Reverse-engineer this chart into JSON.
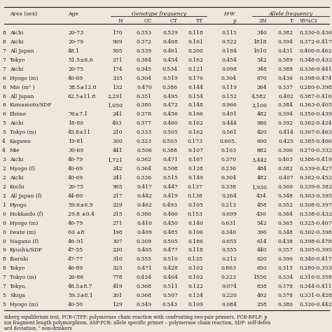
{
  "rows": [
    [
      "8",
      "Aichi",
      "20-73",
      "170",
      "0.353",
      "0.529",
      "0.118",
      "0.115",
      "340",
      "0.382",
      "0.330-0.436"
    ],
    [
      "8",
      "Aichi",
      "20-79",
      "909",
      "0.372",
      "0.468",
      "0.161",
      "0.522",
      "1818",
      "0.394",
      "0.372-0.417"
    ],
    [
      "7",
      "All Japan",
      "48.1",
      "505",
      "0.339",
      "0.461",
      "0.200",
      "0.184",
      "1010",
      "0.431",
      "0.400-0.462"
    ],
    [
      "7",
      "Tokyo",
      "51.5±8.6",
      "271",
      "0.384",
      "0.454",
      "0.162",
      "0.454",
      "542",
      "0.389",
      "0.348-0.432"
    ],
    [
      "7",
      "Aichi",
      "20-75",
      "174",
      "0.345",
      "0.534",
      "0.121",
      "0.098",
      "348",
      "0.388",
      "0.336-0.441"
    ],
    [
      "6",
      "Hyogo (m)",
      "40-69",
      "335",
      "0.304",
      "0.519",
      "0.176",
      "0.304",
      "670",
      "0.436",
      "0.398-0.474"
    ],
    [
      "6",
      "Mie (mᵃ )",
      "38.5±12.8",
      "132",
      "0.470",
      "0.386",
      "0.144",
      "0.119",
      "264",
      "0.337",
      "0.280-0.398"
    ],
    [
      "6",
      "All Japan",
      "62.5±11.8",
      "2,291",
      "0.351",
      "0.495",
      "0.154",
      "0.152",
      "4,582",
      "0.402",
      "0.387-0.416"
    ],
    [
      "6",
      "Kumamoto/SDF",
      "",
      "1,050",
      "0.380",
      "0.472",
      "0.148",
      "0.966",
      "2,100",
      "0.384",
      "0.363-0.405"
    ],
    [
      "6",
      "Ehime",
      "76±7.1",
      "241",
      "0.378",
      "0.456",
      "0.166",
      "0.491",
      "482",
      "0.394",
      "0.350-0.439"
    ],
    [
      "5",
      "Aichi",
      "18-80",
      "493",
      "0.377",
      "0.460",
      "0.162",
      "0.444",
      "986",
      "0.392",
      "0.362-0.424"
    ],
    [
      "5",
      "Tokyo (m)",
      "45.8±11",
      "210",
      "0.333",
      "0.505",
      "0.162",
      "0.561",
      "420",
      "0.414",
      "0.367-0.463"
    ],
    [
      "4",
      "Kagawa",
      "19-81",
      "300",
      "0.323",
      "0.503",
      "0.173",
      "0.605.",
      "600",
      "0.425",
      "0.385-0.466"
    ],
    [
      "4",
      "Mie",
      "30-69",
      "441",
      "0.506",
      "0.388",
      "0.107",
      "0.103",
      "882",
      "0.300",
      "0.270-0.332"
    ],
    [
      "3",
      "Aichi",
      "40-79",
      "1,721",
      "0.362",
      "0.471",
      "0.167",
      "0.370",
      "3,442",
      "0.403",
      "0.386-0.419"
    ],
    [
      "2",
      "Hyogo (f)",
      "40-69",
      "242",
      "0.364",
      "0.508",
      "0.128",
      "0.236",
      "484",
      "0.382",
      "0.339-0.427"
    ],
    [
      "2",
      "Aichi",
      "40-69",
      "241",
      "0.336",
      "0.515",
      "0.149",
      "0.304",
      "482",
      "0.407",
      "0.362-0.452"
    ],
    [
      "2",
      "Kochi",
      "20-75",
      "965",
      "0.417",
      "0.447",
      "0.137",
      "0.338",
      "1,930",
      "0.360",
      "0.339-0.382"
    ],
    [
      "2",
      "All Japan (f)",
      "44-80",
      "217",
      "0.442",
      "0.419",
      "0.138",
      "0.264",
      "434",
      "0.348",
      "0.303-0.395"
    ],
    [
      "1",
      "Hyogo",
      "59.6±6.9",
      "229",
      "0.402",
      "0.493",
      "0.105",
      "0.213",
      "458",
      "0.352",
      "0.308-0.397"
    ],
    [
      "0",
      "Hokkaido (f)",
      "29.8 ±0.4",
      "215",
      "0.386",
      "0.460",
      "0.153",
      "0.699",
      "430",
      "0.384",
      "0.338-0.432"
    ],
    [
      "0",
      "Hyogo (m)",
      "40-79",
      "271",
      "0.410",
      "0.450",
      "0.140",
      "0.631",
      "542",
      "0.365",
      "0.325-0.407"
    ],
    [
      "0",
      "Iwate (m)",
      "60 ±8",
      "198",
      "0.409",
      "0.485",
      "0.106",
      "0.340",
      "396",
      "0.348",
      "0.302-0.398"
    ],
    [
      "0",
      "Nagano (f)",
      "46–91",
      "307",
      "0.309",
      "0.505",
      "0.186",
      "0.655",
      "614",
      "0.438",
      "0.398-0.478"
    ],
    [
      "9",
      "Kyushu/SDF",
      "47-55",
      "220",
      "0.405",
      "0.477",
      "0.118",
      "0.555",
      "440",
      "0.357",
      "0.305-0.395"
    ],
    [
      "8",
      "Ibaraki",
      "47-77",
      "310",
      "0.355",
      "0.510",
      "0.135",
      "0.212",
      "620",
      "0.390",
      "0.340-0.417"
    ],
    [
      "8",
      "Tokyo",
      "46-89",
      "325",
      "0.471",
      "0.428",
      "0.102",
      "0.863",
      "650",
      "0.315",
      "0.280-0.353"
    ],
    [
      "7",
      "Tokyo (m)",
      "26-86",
      "778",
      "0.434",
      "0.464",
      "0.102",
      "0.223",
      "1556",
      "0.334",
      "0.310-0.358"
    ],
    [
      "7",
      "Tokyo,",
      "48.5±8.7",
      "419",
      "0.368",
      "0.511",
      "0.122",
      "0.074",
      "838",
      "0.378",
      "0.344-0.411"
    ],
    [
      "5",
      "Shiga",
      "59.3±8.1",
      "201",
      "0.368",
      "0.507",
      "0.124",
      "0.220",
      "402",
      "0.378",
      "0.331-0.428"
    ],
    [
      "5",
      "Hyogo (m)",
      "40-50",
      "129",
      "0.349",
      "0.543",
      "0.109",
      "0.084",
      "258",
      "0.380",
      "0.320-0.442"
    ]
  ],
  "footnote_lines": [
    "inberg equilibrium test, PCR-CTPP: polymerase chain reaction with confronting two-pair primers, PCR-RFLP: p",
    "ion fragment length polymorphism, ASP-PCR: allele specific primer – polymerase chain reaction, SDF: self-defen",
    "ard deviation; ᵃ non-drinkers"
  ],
  "bg_color": "#ede8dc",
  "text_color": "#1a1a1a",
  "font_size": 5.5,
  "header_font_size": 5.5,
  "footnote_font_size": 4.8
}
